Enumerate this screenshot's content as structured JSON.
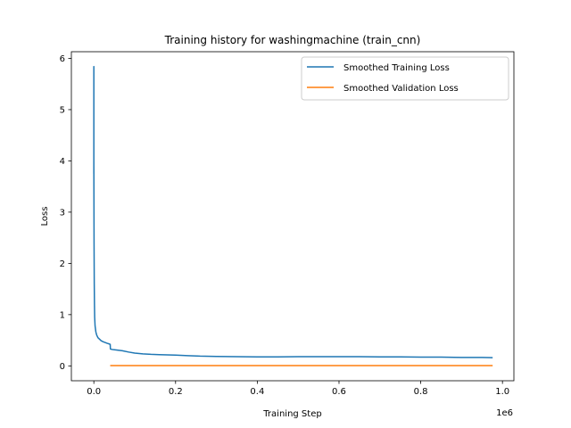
{
  "chart_data": {
    "type": "line",
    "title": "Training history for washingmachine (train_cnn)",
    "xlabel": "Training Step",
    "ylabel": "Loss",
    "x_offset_text": "1e6",
    "xlim": [
      -55000,
      1028000
    ],
    "ylim": [
      -0.29,
      6.13
    ],
    "x_ticks": [
      0.0,
      0.2,
      0.4,
      0.6,
      0.8,
      1.0
    ],
    "x_tick_labels": [
      "0.0",
      "0.2",
      "0.4",
      "0.6",
      "0.8",
      "1.0"
    ],
    "y_ticks": [
      0,
      1,
      2,
      3,
      4,
      5,
      6
    ],
    "y_tick_labels": [
      "0",
      "1",
      "2",
      "3",
      "4",
      "5",
      "6"
    ],
    "grid": false,
    "legend_position": "top-right",
    "series": [
      {
        "name": "Smoothed Training Loss",
        "color": "#1f77b4",
        "x": [
          0,
          0,
          0,
          0,
          0,
          0,
          500,
          1000,
          1500,
          2000,
          3000,
          5000,
          7000,
          10000,
          14000,
          18000,
          23000,
          28000,
          33000,
          37000,
          40000,
          40500,
          45000,
          55000,
          70000,
          85000,
          100000,
          120000,
          140000,
          160000,
          180000,
          200000,
          230000,
          260000,
          300000,
          350000,
          400000,
          450000,
          500000,
          550000,
          600000,
          650000,
          700000,
          750000,
          800000,
          850000,
          900000,
          950000,
          976000
        ],
        "y": [
          5.82,
          3.75,
          5.84,
          4.4,
          5.8,
          4.0,
          2.4,
          1.6,
          1.2,
          0.95,
          0.78,
          0.66,
          0.6,
          0.55,
          0.52,
          0.49,
          0.47,
          0.455,
          0.44,
          0.43,
          0.42,
          0.33,
          0.32,
          0.31,
          0.295,
          0.27,
          0.25,
          0.235,
          0.225,
          0.22,
          0.215,
          0.21,
          0.2,
          0.19,
          0.185,
          0.18,
          0.175,
          0.175,
          0.18,
          0.18,
          0.18,
          0.18,
          0.175,
          0.175,
          0.17,
          0.17,
          0.165,
          0.165,
          0.16
        ]
      },
      {
        "name": "Smoothed Validation Loss",
        "color": "#ff7f0e",
        "x": [
          40000,
          976000
        ],
        "y": [
          0.005,
          0.005
        ]
      }
    ]
  }
}
